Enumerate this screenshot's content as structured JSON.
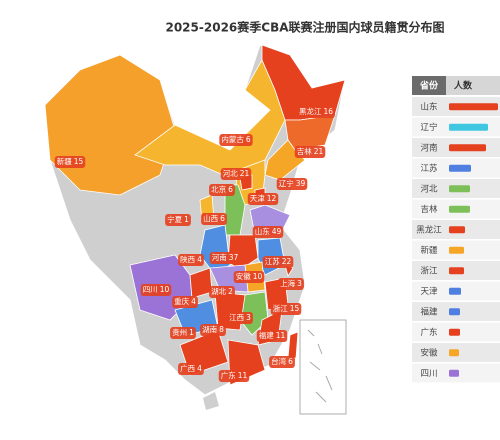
{
  "title": "2025-2026赛季CBA联赛注册国内球员籍贯分布图",
  "regions": [
    {
      "name": "新疆",
      "value": 15,
      "color": "#f5a02a"
    },
    {
      "name": "内蒙古",
      "value": 6,
      "color": "#f6b52e"
    },
    {
      "name": "黑龙江",
      "value": 16,
      "color": "#e5411f"
    },
    {
      "name": "吉林",
      "value": 21,
      "color": "#ee6a2a"
    },
    {
      "name": "辽宁",
      "value": 39,
      "color": "#f6a626"
    },
    {
      "name": "河北",
      "value": 21,
      "color": "#f6b52e"
    },
    {
      "name": "北京",
      "value": 6,
      "color": "#e5411f"
    },
    {
      "name": "天津",
      "value": 12,
      "color": "#e5411f"
    },
    {
      "name": "宁夏",
      "value": 1,
      "color": "#f6b52e"
    },
    {
      "name": "山西",
      "value": 6,
      "color": "#7dc05a"
    },
    {
      "name": "山东",
      "value": 49,
      "color": "#a98fe0"
    },
    {
      "name": "陕西",
      "value": 4,
      "color": "#4f8ee0"
    },
    {
      "name": "河南",
      "value": 37,
      "color": "#e5411f"
    },
    {
      "name": "江苏",
      "value": 22,
      "color": "#4f8ee0"
    },
    {
      "name": "安徽",
      "value": 10,
      "color": "#f6a626"
    },
    {
      "name": "上海",
      "value": 3,
      "color": "#e5411f"
    },
    {
      "name": "四川",
      "value": 10,
      "color": "#9b72d6"
    },
    {
      "name": "重庆",
      "value": 4,
      "color": "#e5411f"
    },
    {
      "name": "湖北",
      "value": 2,
      "color": "#a98fe0"
    },
    {
      "name": "浙江",
      "value": 15,
      "color": "#e5411f"
    },
    {
      "name": "江西",
      "value": 3,
      "color": "#7dc05a"
    },
    {
      "name": "贵州",
      "value": 1,
      "color": "#4f8ee0"
    },
    {
      "name": "湖南",
      "value": 8,
      "color": "#e5411f"
    },
    {
      "name": "福建",
      "value": 11,
      "color": "#e5411f"
    },
    {
      "name": "广西",
      "value": 4,
      "color": "#e5411f"
    },
    {
      "name": "广东",
      "value": 11,
      "color": "#e5411f"
    },
    {
      "name": "台湾",
      "value": 6,
      "color": "#e5411f"
    }
  ],
  "table": {
    "header": [
      "省份",
      "人数"
    ],
    "rows": [
      {
        "name": "山东",
        "color": "#e5411f"
      },
      {
        "name": "辽宁",
        "color": "#3fc6e0"
      },
      {
        "name": "河南",
        "color": "#e5411f"
      },
      {
        "name": "江苏",
        "color": "#4f7fe0"
      },
      {
        "name": "河北",
        "color": "#7dc05a"
      },
      {
        "name": "吉林",
        "color": "#7dc05a"
      },
      {
        "name": "黑龙江",
        "color": "#e5411f"
      },
      {
        "name": "新疆",
        "color": "#f6a626"
      },
      {
        "name": "浙江",
        "color": "#e5411f"
      },
      {
        "name": "天津",
        "color": "#4f7fe0"
      },
      {
        "name": "福建",
        "color": "#4f7fe0"
      },
      {
        "name": "广东",
        "color": "#e5411f"
      },
      {
        "name": "安徽",
        "color": "#f6a626"
      },
      {
        "name": "四川",
        "color": "#9b72d6"
      }
    ]
  }
}
